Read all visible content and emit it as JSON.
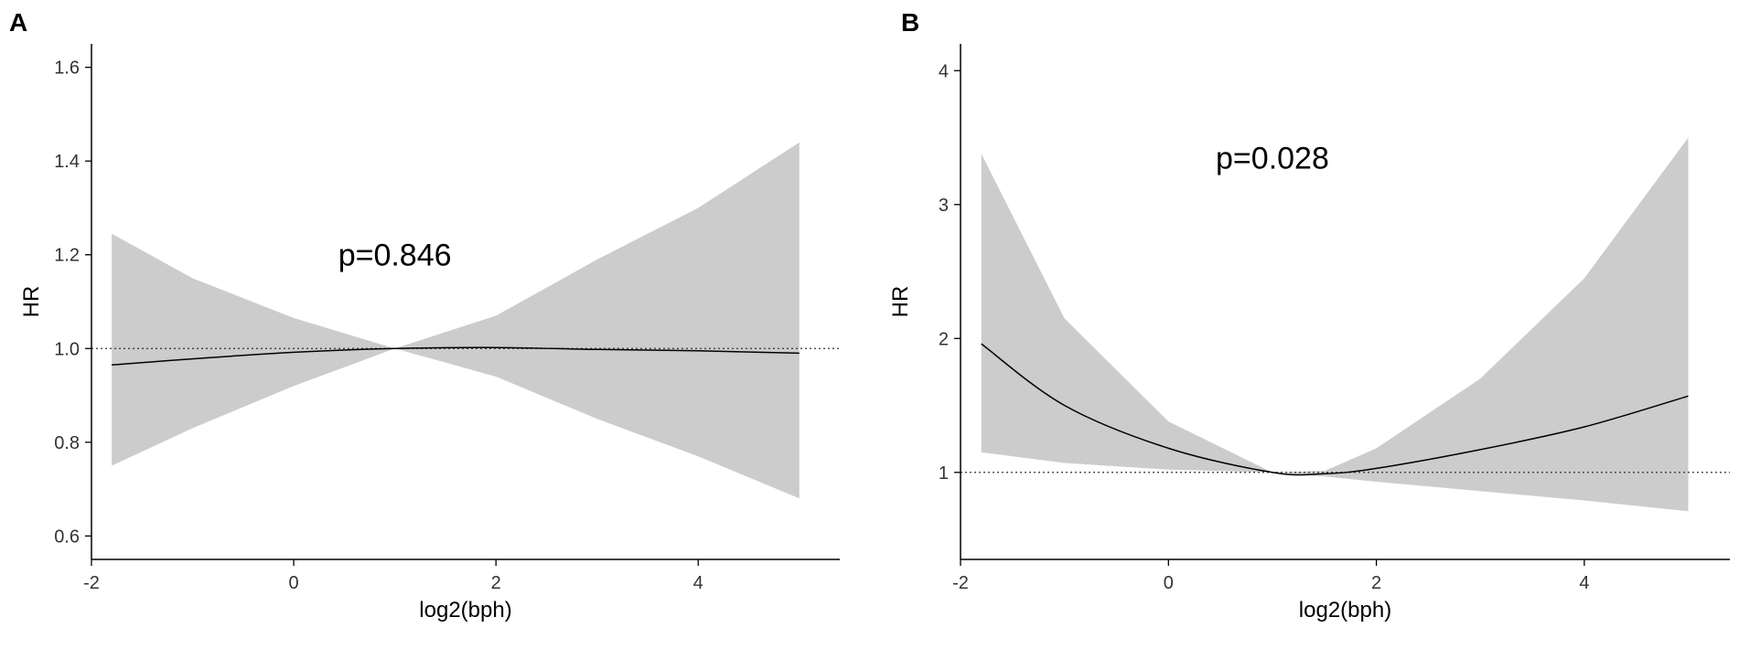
{
  "chart_data": [
    {
      "panel_label": "A",
      "type": "line",
      "xlabel": "log2(bph)",
      "ylabel": "HR",
      "xlim": [
        -2.0,
        5.4
      ],
      "ylim": [
        0.55,
        1.65
      ],
      "x_ticks": [
        -2,
        0,
        2,
        4
      ],
      "x_tick_labels": [
        "-2",
        "0",
        "2",
        "4"
      ],
      "y_ticks": [
        0.6,
        0.8,
        1.0,
        1.2,
        1.4,
        1.6
      ],
      "y_tick_labels": [
        "0.6",
        "0.8",
        "1.0",
        "1.2",
        "1.4",
        "1.6"
      ],
      "reference_line": 1.0,
      "annotation": {
        "text": "p=0.846",
        "x": 1.0,
        "y": 1.2
      },
      "series": [
        {
          "x": [
            -1.8,
            -1.0,
            0.0,
            1.0,
            2.0,
            3.0,
            4.0,
            5.0
          ],
          "y": [
            0.965,
            0.978,
            0.992,
            1.0,
            1.002,
            0.998,
            0.995,
            0.99
          ],
          "lower": [
            0.75,
            0.83,
            0.92,
            1.0,
            0.94,
            0.85,
            0.77,
            0.68
          ],
          "upper": [
            1.245,
            1.15,
            1.065,
            1.0,
            1.07,
            1.19,
            1.3,
            1.44
          ]
        }
      ],
      "grid": false
    },
    {
      "panel_label": "B",
      "type": "line",
      "xlabel": "log2(bph)",
      "ylabel": "HR",
      "xlim": [
        -2.0,
        5.4
      ],
      "ylim": [
        0.35,
        4.2
      ],
      "x_ticks": [
        -2,
        0,
        2,
        4
      ],
      "x_tick_labels": [
        "-2",
        "0",
        "2",
        "4"
      ],
      "y_ticks": [
        1,
        2,
        3,
        4
      ],
      "y_tick_labels": [
        "1",
        "2",
        "3",
        "4"
      ],
      "reference_line": 1.0,
      "annotation": {
        "text": "p=0.028",
        "x": 1.0,
        "y": 3.35
      },
      "series": [
        {
          "x": [
            -1.8,
            -1.0,
            0.0,
            1.0,
            1.5,
            2.0,
            3.0,
            4.0,
            5.0
          ],
          "y": [
            1.96,
            1.5,
            1.18,
            1.0,
            0.99,
            1.03,
            1.17,
            1.34,
            1.57
          ],
          "lower": [
            1.15,
            1.07,
            1.02,
            1.0,
            0.97,
            0.93,
            0.86,
            0.79,
            0.71
          ],
          "upper": [
            3.38,
            2.15,
            1.38,
            1.0,
            1.01,
            1.18,
            1.7,
            2.45,
            3.5
          ]
        }
      ],
      "grid": false
    }
  ],
  "colors": {
    "ci_band": "#cccccc",
    "line": "#000000",
    "axis": "#000000",
    "ref_line": "#333333"
  }
}
